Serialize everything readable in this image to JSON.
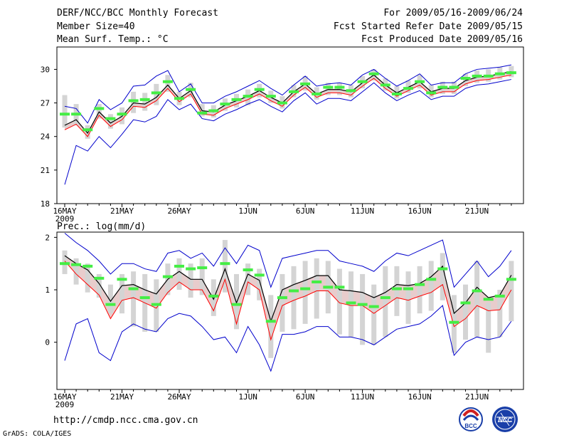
{
  "header": {
    "title": "DERF/NCC/BCC Monthly Forecast",
    "member_size": "Member Size=40",
    "forecast_period": "For 2009/05/16-2009/06/24",
    "started_refer_date": "Fcst Started Refer Date 2009/05/15",
    "produced_date": "Fcst Produced Date 2009/05/16"
  },
  "footer": {
    "url": "http://cmdp.ncc.cma.gov.cn",
    "credit": "GrADS: COLA/IGES",
    "logo1_text": "BCC",
    "logo2_text": "NCC"
  },
  "colors": {
    "ensemble_mean": "#000000",
    "median": "#ff0000",
    "envelope": "#0000cc",
    "box": "#d4d4d4",
    "reference": "#44ee44",
    "fill": "#e8cccc"
  },
  "chart_data": [
    {
      "type": "line",
      "title": "Mean Surf. Temp.: °C",
      "xlabel": "",
      "ylabel": "",
      "x": [
        "16MAY",
        "17MAY",
        "18MAY",
        "19MAY",
        "20MAY",
        "21MAY",
        "22MAY",
        "23MAY",
        "24MAY",
        "25MAY",
        "26MAY",
        "27MAY",
        "28MAY",
        "29MAY",
        "30MAY",
        "31MAY",
        "1JUN",
        "2JUN",
        "3JUN",
        "4JUN",
        "5JUN",
        "6JUN",
        "7JUN",
        "8JUN",
        "9JUN",
        "10JUN",
        "11JUN",
        "12JUN",
        "13JUN",
        "14JUN",
        "15JUN",
        "16JUN",
        "17JUN",
        "18JUN",
        "19JUN",
        "20JUN",
        "21JUN",
        "22JUN",
        "23JUN",
        "24JUN"
      ],
      "x_tick_labels": [
        "16MAY",
        "21MAY",
        "26MAY",
        "1JUN",
        "6JUN",
        "11JUN",
        "16JUN",
        "21JUN"
      ],
      "x_year_label": "2009",
      "ylim": [
        18,
        32
      ],
      "y_ticks": [
        18,
        21,
        24,
        27,
        30
      ],
      "series": [
        {
          "name": "ensemble_mean",
          "values": [
            25.0,
            25.5,
            24.3,
            26.2,
            25.2,
            25.8,
            27.0,
            26.9,
            27.5,
            28.6,
            27.4,
            28.1,
            26.3,
            26.2,
            26.8,
            27.2,
            27.6,
            28.1,
            27.5,
            27.0,
            28.0,
            28.7,
            27.8,
            28.2,
            28.2,
            28.0,
            28.8,
            29.5,
            28.6,
            27.9,
            28.4,
            28.9,
            28.0,
            28.3,
            28.3,
            29.0,
            29.3,
            29.4,
            29.6,
            29.8
          ]
        },
        {
          "name": "median",
          "values": [
            24.6,
            25.1,
            24.0,
            25.9,
            24.9,
            25.5,
            26.7,
            26.6,
            27.2,
            28.3,
            27.1,
            27.8,
            26.0,
            25.9,
            26.5,
            26.9,
            27.3,
            27.8,
            27.2,
            26.7,
            27.7,
            28.4,
            27.5,
            27.9,
            27.9,
            27.7,
            28.5,
            29.2,
            28.3,
            27.6,
            28.1,
            28.6,
            27.7,
            28.0,
            28.0,
            28.7,
            29.0,
            29.1,
            29.3,
            29.5
          ]
        },
        {
          "name": "max",
          "values": [
            26.7,
            26.5,
            25.2,
            27.3,
            26.4,
            27.0,
            28.5,
            28.6,
            29.4,
            29.9,
            28.0,
            28.7,
            27.0,
            27.0,
            27.6,
            28.0,
            28.5,
            29.0,
            28.3,
            27.7,
            28.6,
            29.4,
            28.5,
            28.7,
            28.8,
            28.6,
            29.5,
            30.0,
            29.2,
            28.5,
            29.0,
            29.6,
            28.6,
            28.8,
            28.8,
            29.6,
            30.0,
            30.1,
            30.2,
            30.4
          ]
        },
        {
          "name": "min",
          "values": [
            19.7,
            23.2,
            22.7,
            24.0,
            23.0,
            24.2,
            25.5,
            25.3,
            25.8,
            27.3,
            26.4,
            26.9,
            25.6,
            25.4,
            26.0,
            26.4,
            26.9,
            27.3,
            26.7,
            26.2,
            27.2,
            27.9,
            26.9,
            27.4,
            27.4,
            27.2,
            28.0,
            28.8,
            27.9,
            27.2,
            27.7,
            28.1,
            27.3,
            27.6,
            27.6,
            28.3,
            28.6,
            28.7,
            28.9,
            29.1
          ]
        },
        {
          "name": "box_high",
          "values": [
            27.7,
            26.9,
            25.0,
            26.9,
            26.0,
            26.6,
            28.0,
            27.9,
            28.7,
            29.5,
            28.0,
            28.8,
            26.9,
            26.8,
            27.4,
            27.8,
            28.2,
            28.7,
            28.1,
            27.6,
            28.6,
            29.4,
            28.4,
            28.8,
            28.8,
            28.6,
            29.4,
            30.0,
            29.2,
            28.5,
            29.0,
            29.5,
            28.6,
            28.9,
            28.9,
            29.6,
            29.9,
            30.0,
            30.2,
            30.3
          ]
        },
        {
          "name": "box_low",
          "values": [
            24.8,
            25.0,
            23.8,
            25.6,
            24.7,
            25.1,
            26.1,
            26.3,
            26.8,
            28.0,
            26.8,
            27.5,
            25.8,
            25.7,
            26.3,
            26.6,
            26.8,
            27.5,
            27.0,
            26.5,
            27.5,
            28.1,
            27.3,
            27.7,
            27.7,
            27.5,
            28.3,
            29.0,
            28.1,
            27.4,
            27.9,
            28.3,
            27.5,
            27.8,
            27.8,
            28.5,
            28.8,
            28.9,
            29.1,
            29.3
          ]
        },
        {
          "name": "reference",
          "values": [
            26.0,
            26.0,
            24.6,
            26.5,
            25.6,
            26.0,
            27.2,
            27.3,
            27.9,
            28.9,
            27.4,
            28.2,
            26.1,
            26.3,
            26.9,
            27.3,
            27.6,
            28.2,
            27.6,
            27.0,
            28.0,
            28.7,
            27.8,
            28.4,
            28.4,
            28.1,
            28.9,
            29.6,
            28.6,
            27.8,
            28.3,
            28.9,
            27.9,
            28.4,
            28.4,
            29.2,
            29.4,
            29.4,
            29.6,
            29.7
          ]
        }
      ]
    },
    {
      "type": "line",
      "title": "Prec.: log(mm/d)",
      "xlabel": "",
      "ylabel": "",
      "x": [
        "16MAY",
        "17MAY",
        "18MAY",
        "19MAY",
        "20MAY",
        "21MAY",
        "22MAY",
        "23MAY",
        "24MAY",
        "25MAY",
        "26MAY",
        "27MAY",
        "28MAY",
        "29MAY",
        "30MAY",
        "31MAY",
        "1JUN",
        "2JUN",
        "3JUN",
        "4JUN",
        "5JUN",
        "6JUN",
        "7JUN",
        "8JUN",
        "9JUN",
        "10JUN",
        "11JUN",
        "12JUN",
        "13JUN",
        "14JUN",
        "15JUN",
        "16JUN",
        "17JUN",
        "18JUN",
        "19JUN",
        "20JUN",
        "21JUN",
        "22JUN",
        "23JUN",
        "24JUN"
      ],
      "x_tick_labels": [
        "16MAY",
        "21MAY",
        "26MAY",
        "1JUN",
        "6JUN",
        "11JUN",
        "16JUN",
        "21JUN"
      ],
      "x_year_label": "2009",
      "ylim": [
        -0.9,
        2.1
      ],
      "y_ticks": [
        0,
        1,
        2
      ],
      "series": [
        {
          "name": "ensemble_mean",
          "values": [
            1.65,
            1.5,
            1.38,
            1.12,
            0.78,
            1.08,
            1.1,
            1.0,
            0.92,
            1.2,
            1.35,
            1.2,
            1.2,
            0.82,
            1.4,
            0.75,
            1.3,
            1.18,
            0.4,
            1.0,
            1.1,
            1.18,
            1.27,
            1.27,
            1.0,
            0.98,
            0.95,
            0.85,
            0.95,
            1.1,
            1.08,
            1.12,
            1.25,
            1.45,
            0.55,
            0.75,
            1.05,
            0.85,
            0.9,
            1.28
          ]
        },
        {
          "name": "median",
          "values": [
            1.55,
            1.3,
            1.1,
            0.9,
            0.45,
            0.8,
            0.85,
            0.75,
            0.65,
            0.95,
            1.15,
            1.0,
            1.0,
            0.6,
            1.2,
            0.35,
            1.15,
            1.0,
            0.05,
            0.7,
            0.8,
            0.88,
            0.98,
            0.98,
            0.75,
            0.7,
            0.7,
            0.55,
            0.7,
            0.85,
            0.8,
            0.88,
            0.95,
            1.1,
            0.3,
            0.45,
            0.7,
            0.6,
            0.62,
            1.0
          ]
        },
        {
          "name": "max",
          "values": [
            2.08,
            1.9,
            1.75,
            1.55,
            1.3,
            1.5,
            1.5,
            1.4,
            1.35,
            1.7,
            1.75,
            1.6,
            1.7,
            1.45,
            1.8,
            1.5,
            1.85,
            1.75,
            1.05,
            1.6,
            1.65,
            1.7,
            1.75,
            1.75,
            1.55,
            1.5,
            1.45,
            1.35,
            1.55,
            1.7,
            1.65,
            1.75,
            1.85,
            1.95,
            1.05,
            1.3,
            1.55,
            1.25,
            1.45,
            1.75
          ]
        },
        {
          "name": "min",
          "values": [
            -0.35,
            0.35,
            0.45,
            -0.2,
            -0.35,
            0.2,
            0.35,
            0.25,
            0.2,
            0.45,
            0.55,
            0.5,
            0.3,
            0.05,
            0.1,
            -0.2,
            0.3,
            -0.05,
            -0.55,
            0.15,
            0.15,
            0.2,
            0.3,
            0.3,
            0.1,
            0.1,
            0.05,
            -0.05,
            0.1,
            0.25,
            0.3,
            0.35,
            0.5,
            0.7,
            -0.25,
            0.0,
            0.1,
            0.05,
            0.1,
            0.4
          ]
        },
        {
          "name": "box_high",
          "values": [
            1.75,
            1.6,
            1.5,
            1.3,
            1.1,
            1.3,
            1.35,
            1.3,
            1.2,
            1.5,
            1.6,
            1.5,
            1.6,
            1.2,
            1.95,
            1.3,
            1.5,
            1.4,
            0.9,
            1.3,
            1.45,
            1.55,
            1.6,
            1.55,
            1.4,
            1.35,
            1.3,
            1.1,
            1.45,
            1.45,
            1.35,
            1.45,
            1.55,
            1.7,
            0.9,
            1.1,
            1.55,
            0.75,
            1.0,
            1.55
          ]
        },
        {
          "name": "box_low",
          "values": [
            1.3,
            1.1,
            0.95,
            0.85,
            0.55,
            0.55,
            0.3,
            0.2,
            0.2,
            0.9,
            1.0,
            0.85,
            0.9,
            0.5,
            0.95,
            0.25,
            0.9,
            0.8,
            -0.3,
            0.2,
            0.25,
            0.35,
            0.45,
            0.55,
            0.15,
            0.1,
            -0.05,
            -0.05,
            0.1,
            0.5,
            0.35,
            0.55,
            0.6,
            0.8,
            -0.2,
            0.05,
            0.1,
            -0.2,
            0.1,
            0.4
          ]
        },
        {
          "name": "reference",
          "values": [
            1.5,
            1.48,
            1.45,
            1.22,
            0.72,
            1.2,
            1.02,
            0.85,
            0.72,
            1.25,
            1.45,
            1.4,
            1.42,
            0.88,
            1.5,
            0.72,
            1.38,
            1.28,
            0.4,
            0.85,
            0.98,
            1.02,
            1.15,
            1.05,
            1.05,
            0.75,
            0.72,
            0.68,
            0.85,
            1.02,
            1.02,
            1.1,
            1.2,
            1.4,
            0.38,
            0.75,
            0.98,
            0.82,
            0.88,
            1.2
          ]
        }
      ]
    }
  ]
}
